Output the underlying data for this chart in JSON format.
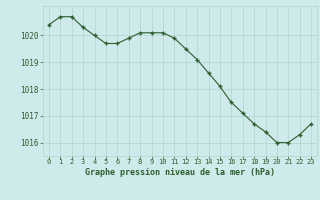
{
  "x": [
    0,
    1,
    2,
    3,
    4,
    5,
    6,
    7,
    8,
    9,
    10,
    11,
    12,
    13,
    14,
    15,
    16,
    17,
    18,
    19,
    20,
    21,
    22,
    23
  ],
  "y": [
    1020.4,
    1020.7,
    1020.7,
    1020.3,
    1020.0,
    1019.7,
    1019.7,
    1019.9,
    1020.1,
    1020.1,
    1020.1,
    1019.9,
    1019.5,
    1019.1,
    1018.6,
    1018.1,
    1017.5,
    1017.1,
    1016.7,
    1016.4,
    1016.0,
    1016.0,
    1016.3,
    1016.7
  ],
  "ylim": [
    1015.5,
    1021.1
  ],
  "yticks": [
    1016,
    1017,
    1018,
    1019,
    1020
  ],
  "xticks": [
    0,
    1,
    2,
    3,
    4,
    5,
    6,
    7,
    8,
    9,
    10,
    11,
    12,
    13,
    14,
    15,
    16,
    17,
    18,
    19,
    20,
    21,
    22,
    23
  ],
  "line_color": "#2d5e2d",
  "marker_color": "#2d5e2d",
  "bg_color": "#ceeaea",
  "grid_color": "#b0d4cc",
  "xlabel": "Graphe pression niveau de la mer (hPa)",
  "xlabel_color": "#2d5e2d",
  "tick_color": "#2d5e2d"
}
